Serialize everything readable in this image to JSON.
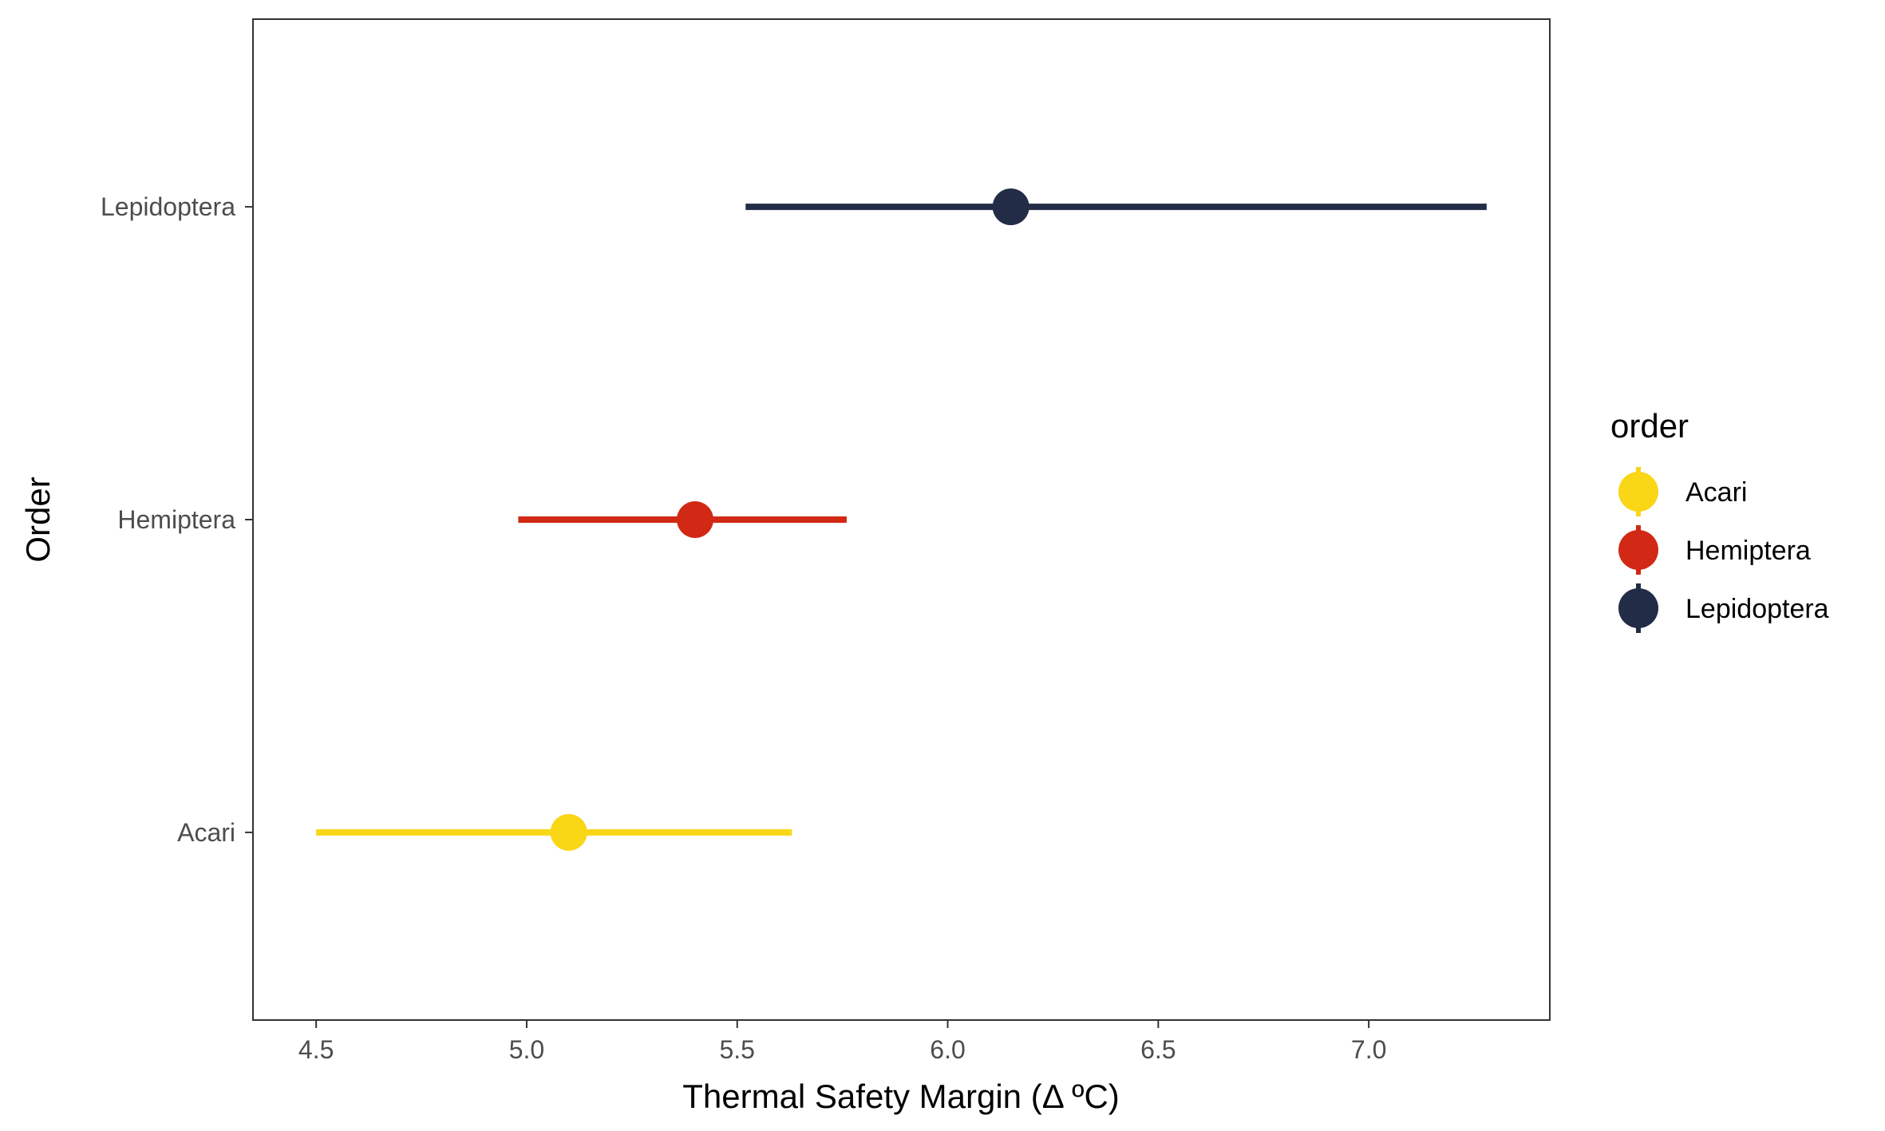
{
  "chart_data": {
    "type": "scatter",
    "title": "",
    "xlabel": "Thermal Safety Margin (Δ ºC)",
    "ylabel": "Order",
    "xlim": [
      4.35,
      7.43
    ],
    "x_ticks": [
      "4.5",
      "5.0",
      "5.5",
      "6.0",
      "6.5",
      "7.0"
    ],
    "x_tick_values": [
      4.5,
      5.0,
      5.5,
      6.0,
      6.5,
      7.0
    ],
    "categories": [
      "Acari",
      "Hemiptera",
      "Lepidoptera"
    ],
    "series": [
      {
        "category": "Acari",
        "estimate": 5.1,
        "lower": 4.5,
        "upper": 5.63,
        "color": "#F9D616"
      },
      {
        "category": "Hemiptera",
        "estimate": 5.4,
        "lower": 4.98,
        "upper": 5.76,
        "color": "#D12915"
      },
      {
        "category": "Lepidoptera",
        "estimate": 6.15,
        "lower": 5.52,
        "upper": 7.28,
        "color": "#232C46"
      }
    ],
    "grid": false,
    "legend": {
      "title": "order",
      "position": "right",
      "entries": [
        "Acari",
        "Hemiptera",
        "Lepidoptera"
      ]
    }
  }
}
